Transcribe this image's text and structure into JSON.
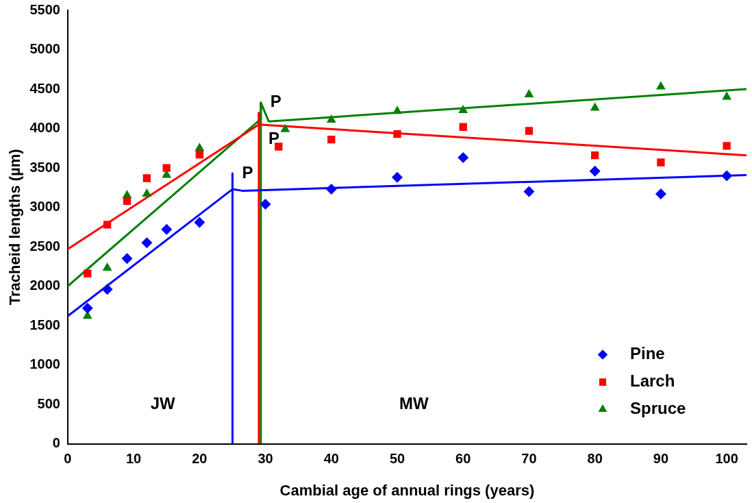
{
  "chart_data": {
    "type": "scatter",
    "xlabel": "Cambial age of annual rings (years)",
    "ylabel": "Tracheid lengths (µm)",
    "xlim": [
      0,
      103
    ],
    "xticks": [
      0,
      10,
      20,
      30,
      40,
      50,
      60,
      70,
      80,
      90,
      100
    ],
    "ylim": [
      0,
      5500
    ],
    "yticks": [
      0,
      500,
      1000,
      1500,
      2000,
      2500,
      3000,
      3500,
      4000,
      4500,
      5000,
      5500
    ],
    "grid": false,
    "legend": "bottom right",
    "series": [
      {
        "name": "Pine",
        "color": "#0000ff",
        "marker": "diamond",
        "x": [
          3,
          6,
          9,
          12,
          15,
          20,
          30,
          40,
          50,
          60,
          70,
          80,
          90,
          100
        ],
        "values": [
          1720,
          1960,
          2350,
          2550,
          2720,
          2810,
          3040,
          3230,
          3380,
          3630,
          3200,
          3460,
          3170,
          3400
        ]
      },
      {
        "name": "Larch",
        "color": "#ff0000",
        "marker": "square",
        "x": [
          3,
          6,
          9,
          12,
          15,
          20,
          32,
          40,
          50,
          60,
          70,
          80,
          90,
          100
        ],
        "values": [
          2160,
          2780,
          3080,
          3370,
          3500,
          3670,
          3770,
          3860,
          3930,
          4020,
          3970,
          3660,
          3570,
          3780
        ]
      },
      {
        "name": "Spruce",
        "color": "#008000",
        "marker": "triangle",
        "x": [
          3,
          6,
          9,
          12,
          15,
          20,
          33,
          40,
          50,
          60,
          70,
          80,
          90,
          100
        ],
        "values": [
          1620,
          2230,
          3150,
          3170,
          3410,
          3750,
          3990,
          4110,
          4220,
          4230,
          4430,
          4260,
          4530,
          4400
        ]
      },
      {
        "type": "line",
        "color": "#0000ff",
        "marker": "none",
        "x": [
          0,
          25,
          25,
          25,
          26.5,
          103
        ],
        "values": [
          1620,
          3230,
          3430,
          3230,
          3210,
          3410
        ]
      },
      {
        "type": "line",
        "color": "#0000ff",
        "marker": "none",
        "x": [
          25,
          25
        ],
        "values": [
          0,
          3430
        ]
      },
      {
        "type": "line",
        "color": "#ff0000",
        "marker": "none",
        "x": [
          0,
          29,
          29,
          29,
          103
        ],
        "values": [
          2470,
          4050,
          4200,
          4050,
          3660
        ]
      },
      {
        "type": "line",
        "color": "#ff0000",
        "marker": "none",
        "x": [
          29,
          29
        ],
        "values": [
          0,
          4200
        ]
      },
      {
        "type": "line",
        "color": "#008000",
        "marker": "none",
        "x": [
          0,
          29.3,
          29.3,
          30.5,
          103
        ],
        "values": [
          2000,
          4120,
          4330,
          4090,
          4500
        ]
      },
      {
        "type": "line",
        "color": "#008000",
        "marker": "none",
        "x": [
          29.3,
          29.3
        ],
        "values": [
          0,
          4330
        ]
      }
    ],
    "annotations": [
      {
        "text": "P",
        "x": 29.3,
        "y": 4330
      },
      {
        "text": "P",
        "x": 29,
        "y": 3860
      },
      {
        "text": "P",
        "x": 25,
        "y": 3430
      },
      "JW",
      "MW"
    ]
  }
}
